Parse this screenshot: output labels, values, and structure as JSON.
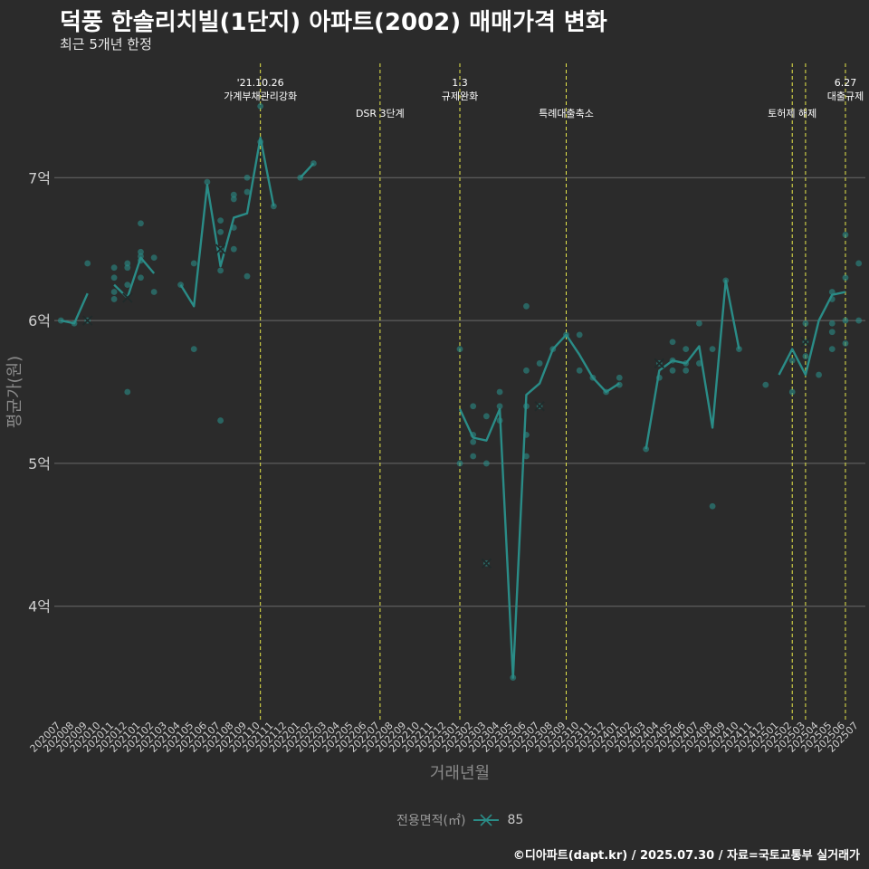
{
  "title": "덕풍 한솔리치빌(1단지) 아파트(2002) 매매가격 변화",
  "subtitle": "최근 5개년 한정",
  "caption": "©디아파트(dapt.kr) / 2025.07.30 / 자료=국토교통부 실거래가",
  "legend": {
    "title": "전용면적(㎡)",
    "entries": [
      "85"
    ]
  },
  "colors": {
    "background": "#2b2b2b",
    "grid": "#6a6a6a",
    "line": "#2a8c87",
    "points": "#2a8c87",
    "vline": "#e8e84a",
    "text": "#ffffff",
    "axis_text": "#cfcfcf",
    "axis_title": "#8a8a8a"
  },
  "chart_data": {
    "type": "line",
    "xlabel": "거래년월",
    "ylabel": "평균가(원)",
    "ylim": [
      3.2,
      7.8
    ],
    "yticks": [
      4,
      5,
      6,
      7
    ],
    "ytick_labels": [
      "4억",
      "5억",
      "6억",
      "7억"
    ],
    "grid": "horizontal",
    "legend_position": "bottom",
    "categories": [
      "202007",
      "202008",
      "202009",
      "202010",
      "202011",
      "202012",
      "202101",
      "202102",
      "202103",
      "202104",
      "202105",
      "202106",
      "202107",
      "202108",
      "202109",
      "202110",
      "202111",
      "202112",
      "202201",
      "202202",
      "202203",
      "202204",
      "202205",
      "202206",
      "202207",
      "202208",
      "202209",
      "202210",
      "202211",
      "202212",
      "202301",
      "202302",
      "202303",
      "202304",
      "202305",
      "202306",
      "202307",
      "202308",
      "202309",
      "202310",
      "202311",
      "202312",
      "202401",
      "202402",
      "202403",
      "202404",
      "202405",
      "202406",
      "202407",
      "202408",
      "202409",
      "202410",
      "202411",
      "202412",
      "202501",
      "202502",
      "202503",
      "202504",
      "202505",
      "202506",
      "202507"
    ],
    "series": [
      {
        "name": "85",
        "values": [
          6.0,
          5.98,
          6.19,
          null,
          6.25,
          6.16,
          6.44,
          6.33,
          null,
          6.25,
          6.1,
          6.95,
          6.38,
          6.72,
          6.75,
          7.28,
          6.8,
          null,
          7.0,
          7.1,
          null,
          null,
          null,
          null,
          null,
          null,
          null,
          null,
          null,
          null,
          5.38,
          5.18,
          5.16,
          5.38,
          3.5,
          5.48,
          5.56,
          5.8,
          5.9,
          5.76,
          5.6,
          5.5,
          5.56,
          null,
          5.1,
          5.65,
          5.72,
          5.7,
          5.82,
          5.25,
          6.28,
          5.8,
          null,
          null,
          5.62,
          5.8,
          5.62,
          6.0,
          6.18,
          6.2,
          null
        ]
      }
    ],
    "points": [
      {
        "x": "202007",
        "y": 6.0
      },
      {
        "x": "202008",
        "y": 5.98
      },
      {
        "x": "202009",
        "y": 6.0
      },
      {
        "x": "202009",
        "y": 6.4
      },
      {
        "x": "202011",
        "y": 6.37
      },
      {
        "x": "202011",
        "y": 6.3
      },
      {
        "x": "202011",
        "y": 6.2
      },
      {
        "x": "202011",
        "y": 6.15
      },
      {
        "x": "202012",
        "y": 6.4
      },
      {
        "x": "202012",
        "y": 6.37
      },
      {
        "x": "202012",
        "y": 6.25
      },
      {
        "x": "202012",
        "y": 5.5
      },
      {
        "x": "202101",
        "y": 6.68
      },
      {
        "x": "202101",
        "y": 6.48
      },
      {
        "x": "202101",
        "y": 6.45
      },
      {
        "x": "202101",
        "y": 6.3
      },
      {
        "x": "202101",
        "y": 6.42
      },
      {
        "x": "202102",
        "y": 6.44
      },
      {
        "x": "202102",
        "y": 6.2
      },
      {
        "x": "202104",
        "y": 6.25
      },
      {
        "x": "202105",
        "y": 6.4
      },
      {
        "x": "202105",
        "y": 5.8
      },
      {
        "x": "202106",
        "y": 6.97
      },
      {
        "x": "202107",
        "y": 6.7
      },
      {
        "x": "202107",
        "y": 6.62
      },
      {
        "x": "202107",
        "y": 6.5
      },
      {
        "x": "202107",
        "y": 6.35
      },
      {
        "x": "202107",
        "y": 5.3
      },
      {
        "x": "202108",
        "y": 6.88
      },
      {
        "x": "202108",
        "y": 6.85
      },
      {
        "x": "202108",
        "y": 6.65
      },
      {
        "x": "202108",
        "y": 6.5
      },
      {
        "x": "202109",
        "y": 7.0
      },
      {
        "x": "202109",
        "y": 6.9
      },
      {
        "x": "202109",
        "y": 6.31
      },
      {
        "x": "202110",
        "y": 7.5
      },
      {
        "x": "202110",
        "y": 7.25
      },
      {
        "x": "202111",
        "y": 6.8
      },
      {
        "x": "202201",
        "y": 7.0
      },
      {
        "x": "202202",
        "y": 7.1
      },
      {
        "x": "202301",
        "y": 5.8
      },
      {
        "x": "202301",
        "y": 5.0
      },
      {
        "x": "202302",
        "y": 5.4
      },
      {
        "x": "202302",
        "y": 5.2
      },
      {
        "x": "202302",
        "y": 5.15
      },
      {
        "x": "202302",
        "y": 5.05
      },
      {
        "x": "202303",
        "y": 5.33
      },
      {
        "x": "202303",
        "y": 5.0
      },
      {
        "x": "202303",
        "y": 4.3
      },
      {
        "x": "202304",
        "y": 5.5
      },
      {
        "x": "202304",
        "y": 5.4
      },
      {
        "x": "202304",
        "y": 5.3
      },
      {
        "x": "202305",
        "y": 3.5
      },
      {
        "x": "202306",
        "y": 6.1
      },
      {
        "x": "202306",
        "y": 5.65
      },
      {
        "x": "202306",
        "y": 5.4
      },
      {
        "x": "202306",
        "y": 5.2
      },
      {
        "x": "202306",
        "y": 5.05
      },
      {
        "x": "202307",
        "y": 5.7
      },
      {
        "x": "202307",
        "y": 5.4
      },
      {
        "x": "202308",
        "y": 5.8
      },
      {
        "x": "202309",
        "y": 5.9
      },
      {
        "x": "202310",
        "y": 5.9
      },
      {
        "x": "202310",
        "y": 5.65
      },
      {
        "x": "202311",
        "y": 5.6
      },
      {
        "x": "202312",
        "y": 5.5
      },
      {
        "x": "202401",
        "y": 5.6
      },
      {
        "x": "202401",
        "y": 5.55
      },
      {
        "x": "202403",
        "y": 5.1
      },
      {
        "x": "202404",
        "y": 5.7
      },
      {
        "x": "202404",
        "y": 5.6
      },
      {
        "x": "202405",
        "y": 5.85
      },
      {
        "x": "202405",
        "y": 5.72
      },
      {
        "x": "202405",
        "y": 5.65
      },
      {
        "x": "202406",
        "y": 5.8
      },
      {
        "x": "202406",
        "y": 5.7
      },
      {
        "x": "202406",
        "y": 5.65
      },
      {
        "x": "202407",
        "y": 5.98
      },
      {
        "x": "202407",
        "y": 5.7
      },
      {
        "x": "202408",
        "y": 5.8
      },
      {
        "x": "202408",
        "y": 4.7
      },
      {
        "x": "202409",
        "y": 6.28
      },
      {
        "x": "202410",
        "y": 5.8
      },
      {
        "x": "202412",
        "y": 5.55
      },
      {
        "x": "202502",
        "y": 5.72
      },
      {
        "x": "202502",
        "y": 5.5
      },
      {
        "x": "202503",
        "y": 5.98
      },
      {
        "x": "202503",
        "y": 5.85
      },
      {
        "x": "202503",
        "y": 5.75
      },
      {
        "x": "202504",
        "y": 5.62
      },
      {
        "x": "202505",
        "y": 6.2
      },
      {
        "x": "202505",
        "y": 6.15
      },
      {
        "x": "202505",
        "y": 5.98
      },
      {
        "x": "202505",
        "y": 5.92
      },
      {
        "x": "202505",
        "y": 5.8
      },
      {
        "x": "202506",
        "y": 6.6
      },
      {
        "x": "202506",
        "y": 6.3
      },
      {
        "x": "202506",
        "y": 6.0
      },
      {
        "x": "202506",
        "y": 5.84
      },
      {
        "x": "202507",
        "y": 6.4
      },
      {
        "x": "202507",
        "y": 6.0
      }
    ],
    "x_markers": [
      {
        "x": "202009",
        "y": 6.0
      },
      {
        "x": "202012",
        "y": 6.16
      },
      {
        "x": "202107",
        "y": 6.5
      },
      {
        "x": "202303",
        "y": 4.3
      },
      {
        "x": "202307",
        "y": 5.4
      },
      {
        "x": "202404",
        "y": 5.7
      },
      {
        "x": "202503",
        "y": 5.85
      }
    ],
    "events": [
      {
        "x": "202110",
        "lines": [
          "'21.10.26",
          "가계부채관리강화"
        ]
      },
      {
        "x": "202207",
        "lines": [
          "DSR 3단계"
        ]
      },
      {
        "x": "202301",
        "lines": [
          "1.3",
          "규제완화"
        ]
      },
      {
        "x": "202309",
        "lines": [
          "특례대출축소"
        ]
      },
      {
        "x": "202502",
        "lines": [
          "토허제 해제"
        ]
      },
      {
        "x": "202503",
        "lines": []
      },
      {
        "x": "202506",
        "lines": [
          "6.27",
          "대출규제"
        ]
      }
    ]
  }
}
